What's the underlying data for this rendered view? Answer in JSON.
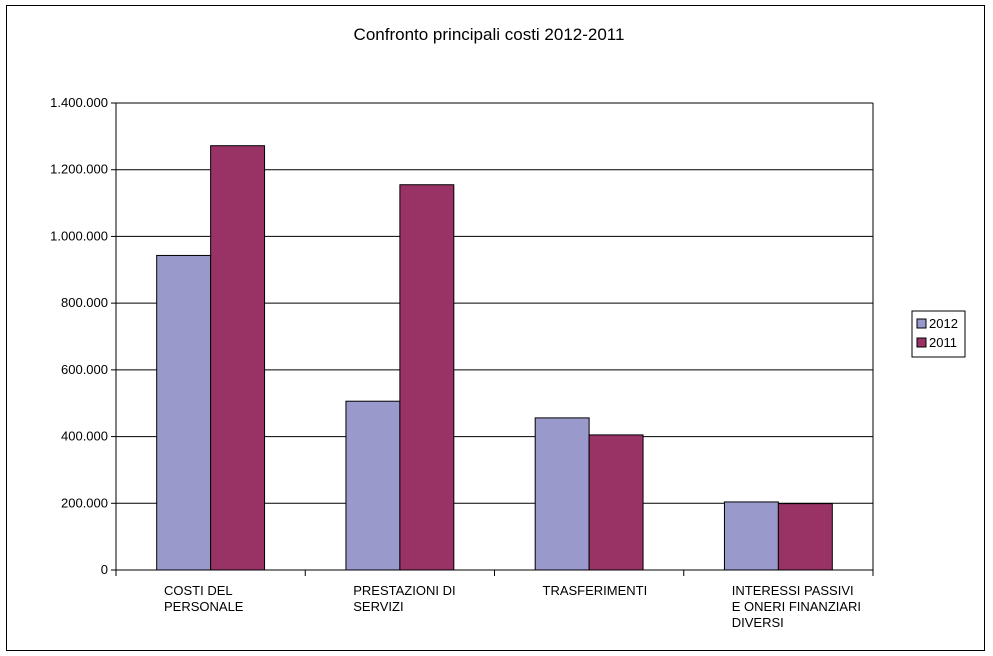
{
  "chart_data": {
    "type": "bar",
    "title": "Confronto principali costi 2012-2011",
    "xlabel": "",
    "ylabel": "",
    "categories": [
      [
        "COSTI DEL",
        "PERSONALE"
      ],
      [
        "PRESTAZIONI DI",
        "SERVIZI"
      ],
      [
        "TRASFERIMENTI"
      ],
      [
        "INTERESSI PASSIVI",
        "E ONERI FINANZIARI",
        "DIVERSI"
      ]
    ],
    "series": [
      {
        "name": "2012",
        "color": "#9999CC",
        "values": [
          943000,
          506000,
          456000,
          204000
        ]
      },
      {
        "name": "2011",
        "color": "#993366",
        "values": [
          1272000,
          1155000,
          405000,
          199000
        ]
      }
    ],
    "ylim": [
      0,
      1400000
    ],
    "y_ticks": [
      {
        "value": 0,
        "label": "0"
      },
      {
        "value": 200000,
        "label": "200.000"
      },
      {
        "value": 400000,
        "label": "400.000"
      },
      {
        "value": 600000,
        "label": "600.000"
      },
      {
        "value": 800000,
        "label": "800.000"
      },
      {
        "value": 1000000,
        "label": "1.000.000"
      },
      {
        "value": 1200000,
        "label": "1.200.000"
      },
      {
        "value": 1400000,
        "label": "1.400.000"
      }
    ],
    "grid": true,
    "legend_position": "right"
  }
}
